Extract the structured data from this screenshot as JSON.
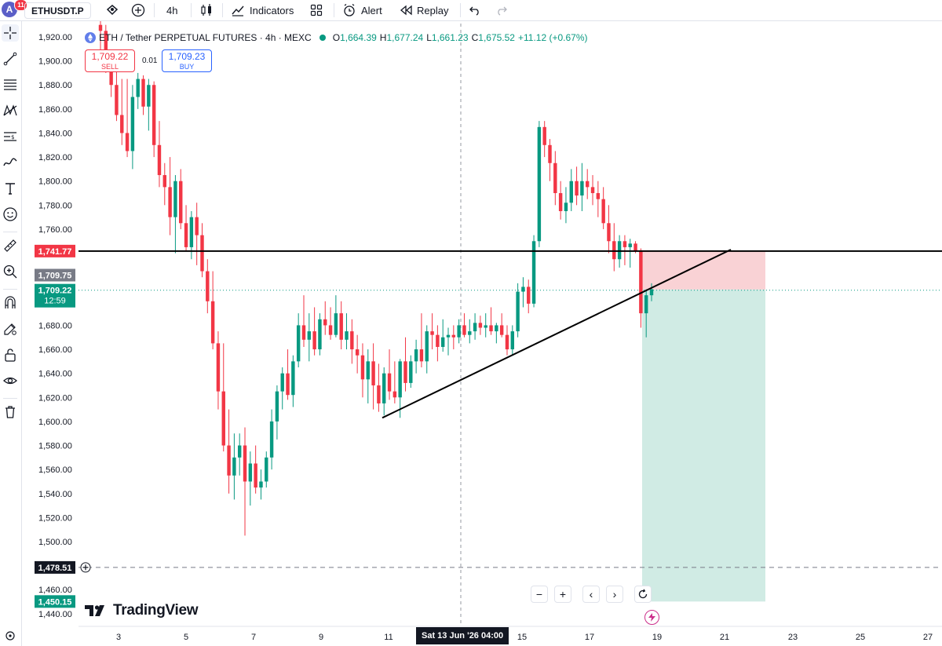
{
  "topbar": {
    "avatar_letter": "A",
    "notification_count": "11",
    "symbol": "ETHUSDT.P",
    "interval": "4h",
    "indicators_label": "Indicators",
    "alert_label": "Alert",
    "replay_label": "Replay"
  },
  "legend": {
    "title": "ETH / Tether PERPETUAL FUTURES · 4h · MEXC",
    "o_label": "O",
    "o": "1,664.39",
    "h_label": "H",
    "h": "1,677.24",
    "l_label": "L",
    "l": "1,661.23",
    "c_label": "C",
    "c": "1,675.52",
    "change": "+11.12 (+0.67%)"
  },
  "trade": {
    "sell_price": "1,709.22",
    "sell_label": "SELL",
    "spread": "0.01",
    "buy_price": "1,709.23",
    "buy_label": "BUY"
  },
  "price_axis": {
    "ticks": [
      "1,920.00",
      "1,900.00",
      "1,880.00",
      "1,860.00",
      "1,840.00",
      "1,820.00",
      "1,800.00",
      "1,780.00",
      "1,760.00",
      "1,680.00",
      "1,660.00",
      "1,640.00",
      "1,620.00",
      "1,600.00",
      "1,580.00",
      "1,560.00",
      "1,540.00",
      "1,520.00",
      "1,500.00",
      "1,460.00",
      "1,440.00"
    ],
    "label_hline": "1,741.77",
    "label_entry": "1,709.75",
    "label_last": "1,709.22",
    "label_countdown": "12:59",
    "label_stop": "1,478.51",
    "label_target": "1,450.15"
  },
  "time_axis": {
    "ticks": [
      "3",
      "5",
      "7",
      "9",
      "11",
      "15",
      "17",
      "19",
      "21",
      "23",
      "25",
      "27"
    ],
    "crosshair_label": "Sat 13 Jun '26   04:00"
  },
  "branding": {
    "logo_text": "TradingView"
  },
  "nav": {
    "zoom_out": "−",
    "zoom_in": "+",
    "scroll_left": "‹",
    "scroll_right": "›"
  },
  "colors": {
    "up": "#089981",
    "down": "#f23645",
    "risk_zone": "#f9d2d5",
    "reward_zone": "#d0ebe4"
  },
  "chart_data": {
    "type": "candlestick",
    "title": "ETH / Tether PERPETUAL FUTURES · 4h · MEXC",
    "ylim": [
      1435,
      1928
    ],
    "x_ticks": [
      "3",
      "5",
      "7",
      "9",
      "11",
      "15",
      "17",
      "19",
      "21",
      "23",
      "25",
      "27"
    ],
    "horizontal_line": 1741.77,
    "stop_level": 1478.51,
    "last_price": 1709.22,
    "short_position": {
      "entry": 1709.75,
      "stop": 1741.77,
      "target": 1450.15
    },
    "trendline": [
      [
        1603,
        null
      ],
      [
        1743,
        null
      ]
    ],
    "candles": [
      [
        1930,
        1940,
        1900,
        1925
      ],
      [
        1925,
        1930,
        1890,
        1900
      ],
      [
        1900,
        1905,
        1870,
        1880
      ],
      [
        1880,
        1895,
        1850,
        1855
      ],
      [
        1855,
        1885,
        1830,
        1840
      ],
      [
        1840,
        1885,
        1820,
        1825
      ],
      [
        1825,
        1880,
        1810,
        1870
      ],
      [
        1870,
        1890,
        1860,
        1885
      ],
      [
        1885,
        1888,
        1855,
        1862
      ],
      [
        1862,
        1885,
        1842,
        1880
      ],
      [
        1880,
        1883,
        1820,
        1830
      ],
      [
        1830,
        1850,
        1795,
        1805
      ],
      [
        1805,
        1815,
        1780,
        1795
      ],
      [
        1795,
        1820,
        1755,
        1770
      ],
      [
        1770,
        1805,
        1740,
        1800
      ],
      [
        1800,
        1810,
        1760,
        1765
      ],
      [
        1765,
        1780,
        1742,
        1745
      ],
      [
        1745,
        1775,
        1735,
        1770
      ],
      [
        1770,
        1782,
        1730,
        1755
      ],
      [
        1755,
        1765,
        1720,
        1725
      ],
      [
        1725,
        1735,
        1690,
        1700
      ],
      [
        1700,
        1725,
        1660,
        1665
      ],
      [
        1665,
        1675,
        1610,
        1625
      ],
      [
        1625,
        1665,
        1575,
        1580
      ],
      [
        1580,
        1610,
        1540,
        1555
      ],
      [
        1555,
        1590,
        1535,
        1570
      ],
      [
        1570,
        1590,
        1555,
        1580
      ],
      [
        1580,
        1595,
        1505,
        1550
      ],
      [
        1550,
        1575,
        1530,
        1565
      ],
      [
        1565,
        1580,
        1540,
        1545
      ],
      [
        1545,
        1560,
        1535,
        1550
      ],
      [
        1550,
        1575,
        1545,
        1570
      ],
      [
        1570,
        1610,
        1560,
        1600
      ],
      [
        1600,
        1630,
        1585,
        1625
      ],
      [
        1625,
        1645,
        1610,
        1640
      ],
      [
        1640,
        1660,
        1618,
        1622
      ],
      [
        1622,
        1655,
        1612,
        1650
      ],
      [
        1650,
        1690,
        1645,
        1680
      ],
      [
        1680,
        1705,
        1662,
        1668
      ],
      [
        1668,
        1690,
        1650,
        1675
      ],
      [
        1675,
        1695,
        1655,
        1660
      ],
      [
        1660,
        1690,
        1655,
        1685
      ],
      [
        1685,
        1700,
        1672,
        1680
      ],
      [
        1680,
        1695,
        1668,
        1672
      ],
      [
        1672,
        1705,
        1670,
        1690
      ],
      [
        1690,
        1700,
        1660,
        1668
      ],
      [
        1668,
        1690,
        1660,
        1675
      ],
      [
        1675,
        1685,
        1648,
        1660
      ],
      [
        1660,
        1672,
        1640,
        1655
      ],
      [
        1655,
        1665,
        1620,
        1635
      ],
      [
        1635,
        1660,
        1615,
        1650
      ],
      [
        1650,
        1665,
        1610,
        1630
      ],
      [
        1630,
        1648,
        1608,
        1615
      ],
      [
        1615,
        1645,
        1605,
        1640
      ],
      [
        1640,
        1660,
        1618,
        1625
      ],
      [
        1625,
        1650,
        1615,
        1620
      ],
      [
        1620,
        1652,
        1603,
        1650
      ],
      [
        1650,
        1670,
        1625,
        1632
      ],
      [
        1632,
        1655,
        1628,
        1650
      ],
      [
        1650,
        1668,
        1640,
        1660
      ],
      [
        1660,
        1690,
        1645,
        1650
      ],
      [
        1650,
        1680,
        1640,
        1675
      ],
      [
        1675,
        1690,
        1660,
        1672
      ],
      [
        1672,
        1680,
        1650,
        1662
      ],
      [
        1662,
        1685,
        1658,
        1670
      ],
      [
        1670,
        1678,
        1655,
        1672
      ],
      [
        1672,
        1680,
        1660,
        1670
      ],
      [
        1670,
        1685,
        1665,
        1680
      ],
      [
        1680,
        1690,
        1670,
        1672
      ],
      [
        1672,
        1685,
        1665,
        1675
      ],
      [
        1675,
        1690,
        1668,
        1682
      ],
      [
        1682,
        1688,
        1672,
        1678
      ],
      [
        1678,
        1690,
        1670,
        1680
      ],
      [
        1680,
        1695,
        1672,
        1675
      ],
      [
        1675,
        1682,
        1665,
        1680
      ],
      [
        1680,
        1690,
        1670,
        1672
      ],
      [
        1672,
        1680,
        1655,
        1660
      ],
      [
        1660,
        1680,
        1655,
        1675
      ],
      [
        1675,
        1715,
        1670,
        1708
      ],
      [
        1708,
        1720,
        1695,
        1712
      ],
      [
        1712,
        1718,
        1690,
        1698
      ],
      [
        1698,
        1755,
        1695,
        1750
      ],
      [
        1750,
        1850,
        1745,
        1845
      ],
      [
        1845,
        1850,
        1820,
        1830
      ],
      [
        1830,
        1835,
        1800,
        1815
      ],
      [
        1815,
        1825,
        1780,
        1790
      ],
      [
        1790,
        1800,
        1768,
        1775
      ],
      [
        1775,
        1795,
        1765,
        1782
      ],
      [
        1782,
        1810,
        1775,
        1800
      ],
      [
        1800,
        1812,
        1780,
        1788
      ],
      [
        1788,
        1815,
        1775,
        1800
      ],
      [
        1800,
        1810,
        1785,
        1795
      ],
      [
        1795,
        1805,
        1780,
        1790
      ],
      [
        1790,
        1800,
        1770,
        1785
      ],
      [
        1785,
        1795,
        1760,
        1765
      ],
      [
        1765,
        1780,
        1740,
        1750
      ],
      [
        1750,
        1765,
        1725,
        1735
      ],
      [
        1735,
        1755,
        1728,
        1750
      ],
      [
        1750,
        1755,
        1730,
        1745
      ],
      [
        1745,
        1752,
        1728,
        1748
      ],
      [
        1748,
        1750,
        1740,
        1742
      ],
      [
        1742,
        1744,
        1678,
        1690
      ],
      [
        1690,
        1710,
        1670,
        1705
      ],
      [
        1705,
        1715,
        1700,
        1710
      ]
    ]
  }
}
